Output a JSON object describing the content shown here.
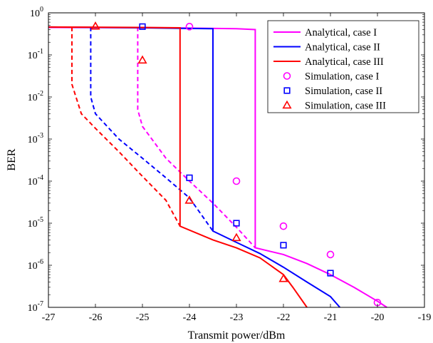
{
  "chart_data": {
    "type": "line",
    "xlabel": "Transmit power/dBm",
    "ylabel": "BER",
    "xlim": [
      -27,
      -19
    ],
    "ylim": [
      1e-07,
      1
    ],
    "yscale": "log",
    "grid": false,
    "legend_position": "top-right",
    "x_ticks": [
      "-27",
      "-26",
      "-25",
      "-24",
      "-23",
      "-22",
      "-21",
      "-20",
      "-19"
    ],
    "y_ticks": [
      {
        "base": "10",
        "exp": "0"
      },
      {
        "base": "10",
        "exp": "-1"
      },
      {
        "base": "10",
        "exp": "-2"
      },
      {
        "base": "10",
        "exp": "-3"
      },
      {
        "base": "10",
        "exp": "-4"
      },
      {
        "base": "10",
        "exp": "-5"
      },
      {
        "base": "10",
        "exp": "-6"
      },
      {
        "base": "10",
        "exp": "-7"
      }
    ],
    "series": [
      {
        "name": "Analytical, case I",
        "kind": "line",
        "color": "#ff00ff",
        "solid": [
          [
            -27,
            0.45
          ],
          [
            -24.5,
            0.44
          ],
          [
            -23,
            0.42
          ],
          [
            -22.6,
            0.4
          ],
          [
            -22.6,
            2.6e-06
          ],
          [
            -22,
            1.8e-06
          ],
          [
            -21.5,
            1.1e-06
          ],
          [
            -21,
            6e-07
          ],
          [
            -20.5,
            3e-07
          ],
          [
            -20,
            1.4e-07
          ],
          [
            -19.8,
            1e-07
          ]
        ],
        "dashed": [
          [
            -25.1,
            0.46
          ],
          [
            -25.1,
            0.005
          ],
          [
            -25,
            0.002
          ],
          [
            -24.8,
            0.001
          ],
          [
            -24.5,
            0.00035
          ],
          [
            -24,
            0.0001
          ],
          [
            -23.5,
            3e-05
          ],
          [
            -23,
            8e-06
          ],
          [
            -22.6,
            2.6e-06
          ]
        ]
      },
      {
        "name": "Analytical, case II",
        "kind": "line",
        "color": "#0000ff",
        "solid": [
          [
            -27,
            0.46
          ],
          [
            -25,
            0.44
          ],
          [
            -23.5,
            0.42
          ],
          [
            -23.5,
            6.5e-06
          ],
          [
            -23,
            3.5e-06
          ],
          [
            -22.5,
            1.9e-06
          ],
          [
            -22,
            9e-07
          ],
          [
            -21.5,
            4e-07
          ],
          [
            -21,
            1.8e-07
          ],
          [
            -20.8,
            1e-07
          ]
        ],
        "dashed": [
          [
            -26.1,
            0.46
          ],
          [
            -26.1,
            0.01
          ],
          [
            -26,
            0.004
          ],
          [
            -25.5,
            0.001
          ],
          [
            -25,
            0.00035
          ],
          [
            -24.5,
            0.00012
          ],
          [
            -24,
            4e-05
          ],
          [
            -23.5,
            6.5e-06
          ]
        ]
      },
      {
        "name": "Analytical, case III",
        "kind": "line",
        "color": "#ff0000",
        "solid": [
          [
            -27,
            0.46
          ],
          [
            -25,
            0.45
          ],
          [
            -24.2,
            0.44
          ],
          [
            -24.2,
            8.5e-06
          ],
          [
            -23.5,
            4e-06
          ],
          [
            -23,
            2.6e-06
          ],
          [
            -22.5,
            1.5e-06
          ],
          [
            -22,
            6e-07
          ],
          [
            -21.8,
            3e-07
          ],
          [
            -21.5,
            1e-07
          ]
        ],
        "dashed": [
          [
            -26.5,
            0.46
          ],
          [
            -26.5,
            0.02
          ],
          [
            -26.3,
            0.004
          ],
          [
            -26,
            0.0018
          ],
          [
            -25.5,
            0.0005
          ],
          [
            -25,
            0.00013
          ],
          [
            -24.5,
            3.5e-05
          ],
          [
            -24.2,
            8.5e-06
          ]
        ]
      },
      {
        "name": "Simulation, case I",
        "kind": "marker",
        "marker": "circle",
        "color": "#ff00ff",
        "points": [
          [
            -24,
            0.47
          ],
          [
            -23,
            0.0001
          ],
          [
            -22,
            8.5e-06
          ],
          [
            -21,
            1.8e-06
          ],
          [
            -20,
            1.3e-07
          ]
        ]
      },
      {
        "name": "Simulation, case II",
        "kind": "marker",
        "marker": "square",
        "color": "#0000ff",
        "points": [
          [
            -25,
            0.47
          ],
          [
            -24,
            0.00012
          ],
          [
            -23,
            1e-05
          ],
          [
            -22,
            3e-06
          ],
          [
            -21,
            6.5e-07
          ]
        ]
      },
      {
        "name": "Simulation, case III",
        "kind": "marker",
        "marker": "triangle",
        "color": "#ff0000",
        "points": [
          [
            -26,
            0.48
          ],
          [
            -25,
            0.075
          ],
          [
            -24,
            3.5e-05
          ],
          [
            -23,
            4.5e-06
          ],
          [
            -22,
            4.8e-07
          ]
        ]
      }
    ]
  }
}
